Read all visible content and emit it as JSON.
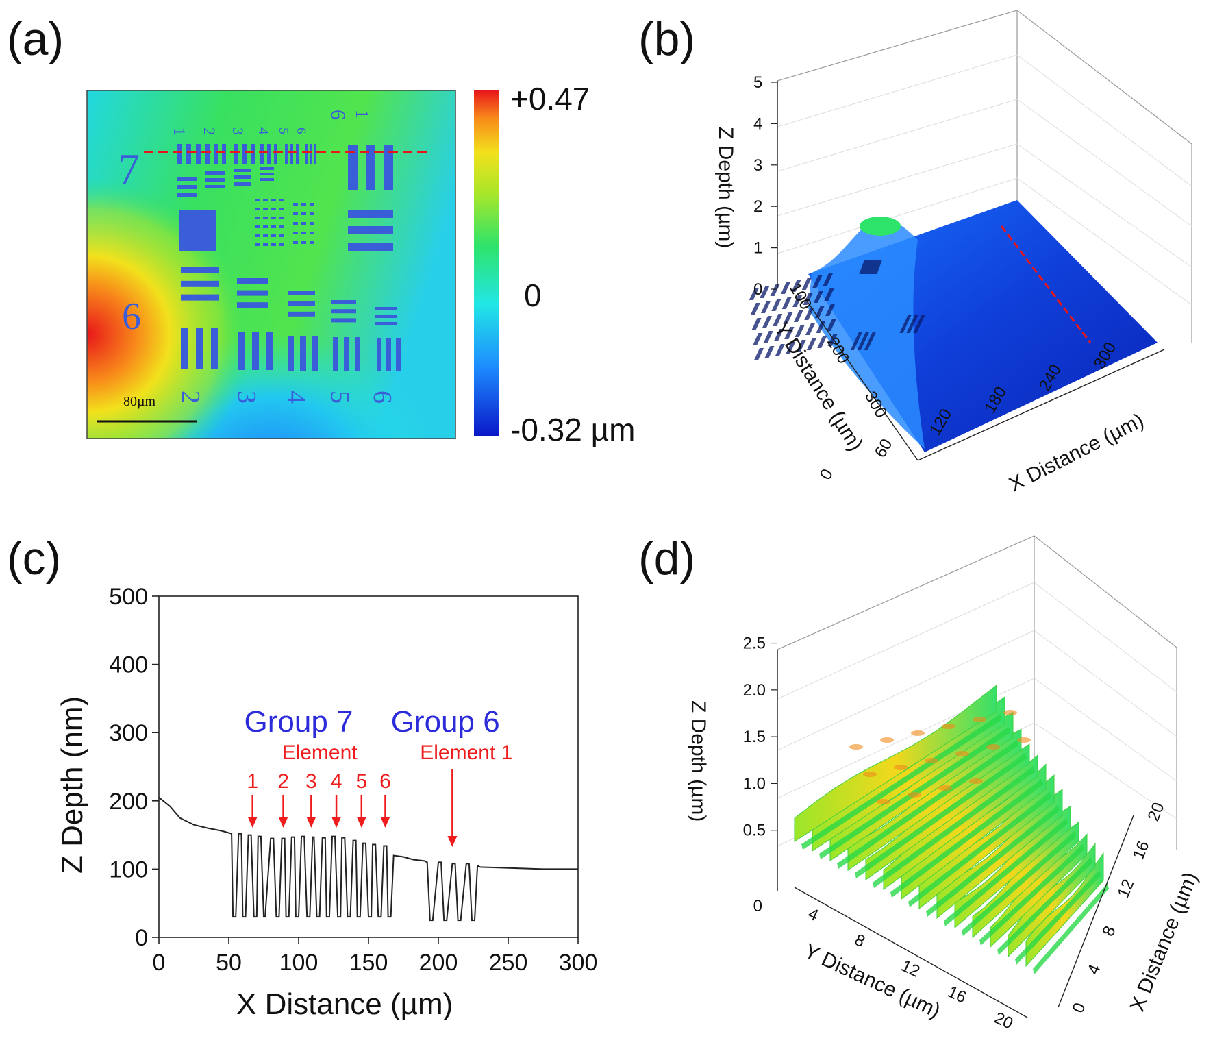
{
  "panel_labels": [
    "(a)",
    "(b)",
    "(c)",
    "(d)"
  ],
  "chart_data": [
    {
      "panel": "(a)",
      "type": "heatmap",
      "colorbar": {
        "max_label": "+0.47",
        "mid_label": "0",
        "min_label": "-0.32 µm",
        "min": -0.32,
        "max": 0.47,
        "unit": "µm"
      },
      "scale_bar_label": "80µm",
      "target_group_labels": [
        "7",
        "6"
      ],
      "element_labels_top": [
        "1",
        "2",
        "3",
        "4",
        "5",
        "6"
      ],
      "element_labels_bottom": [
        "2",
        "3",
        "4",
        "5",
        "6"
      ],
      "group6_top_labels": [
        "6",
        "1"
      ],
      "profile_line": "red dashed line across Group 7 and Group 6 Element 1"
    },
    {
      "panel": "(b)",
      "type": "surface3d",
      "zlabel": "Z Depth (µm)",
      "ylabel": "Y Distance (µm)",
      "xlabel": "X Distance (µm)",
      "z_ticks": [
        "0",
        "1",
        "2",
        "3",
        "4",
        "5"
      ],
      "y_ticks": [
        "100",
        "200",
        "300"
      ],
      "x_ticks": [
        "0",
        "60",
        "120",
        "180",
        "240",
        "300"
      ],
      "z_range": [
        0,
        5
      ],
      "x_range": [
        0,
        300
      ],
      "y_range": [
        0,
        300
      ]
    },
    {
      "panel": "(c)",
      "type": "line",
      "xlabel": "X Distance (µm)",
      "ylabel": "Z Depth (nm)",
      "xlim": [
        0,
        300
      ],
      "ylim": [
        0,
        500
      ],
      "x_ticks": [
        "0",
        "50",
        "100",
        "150",
        "200",
        "250",
        "300"
      ],
      "y_ticks": [
        "0",
        "100",
        "200",
        "300",
        "400",
        "500"
      ],
      "annotations": {
        "group7_label": "Group 7",
        "group7_sublabel": "Element",
        "group7_elements": [
          {
            "label": "1",
            "x": 67
          },
          {
            "label": "2",
            "x": 89
          },
          {
            "label": "3",
            "x": 109
          },
          {
            "label": "4",
            "x": 127
          },
          {
            "label": "5",
            "x": 145
          },
          {
            "label": "6",
            "x": 162
          }
        ],
        "group6_label": "Group 6",
        "group6_sublabel": "Element 1",
        "group6_arrow_x": 210
      },
      "series": [
        {
          "name": "profile",
          "x": [
            0,
            8,
            15,
            25,
            35,
            45,
            52,
            53,
            55,
            57,
            59,
            60,
            62,
            64,
            66,
            68,
            70,
            71,
            73,
            75,
            76,
            80,
            82,
            84,
            86,
            88,
            90,
            91,
            93,
            95,
            97,
            98,
            100,
            102,
            104,
            106,
            108,
            110,
            111,
            113,
            115,
            117,
            119,
            120,
            122,
            124,
            126,
            128,
            130,
            131,
            133,
            135,
            137,
            139,
            141,
            142,
            144,
            146,
            148,
            150,
            152,
            153,
            155,
            157,
            159,
            161,
            163,
            164,
            166,
            168,
            175,
            182,
            190,
            192,
            194,
            196,
            200,
            202,
            204,
            206,
            210,
            212,
            214,
            216,
            220,
            222,
            224,
            226,
            228,
            230,
            245,
            260,
            275,
            290,
            300
          ],
          "y": [
            205,
            192,
            175,
            165,
            160,
            156,
            152,
            30,
            30,
            152,
            152,
            30,
            30,
            150,
            150,
            30,
            30,
            148,
            148,
            30,
            30,
            145,
            145,
            30,
            30,
            145,
            145,
            30,
            30,
            147,
            147,
            30,
            30,
            148,
            148,
            30,
            30,
            147,
            147,
            30,
            30,
            146,
            146,
            30,
            30,
            148,
            148,
            30,
            30,
            146,
            146,
            30,
            30,
            142,
            142,
            30,
            30,
            138,
            138,
            30,
            30,
            136,
            136,
            30,
            30,
            134,
            134,
            30,
            30,
            120,
            118,
            114,
            112,
            110,
            25,
            25,
            110,
            110,
            25,
            25,
            108,
            108,
            25,
            25,
            108,
            108,
            25,
            25,
            105,
            103,
            102,
            101,
            100,
            100,
            100
          ]
        }
      ]
    },
    {
      "panel": "(d)",
      "type": "surface3d",
      "zlabel": "Z Depth (µm)",
      "ylabel": "Y Distance (µm)",
      "xlabel": "X Distance (µm)",
      "z_ticks": [
        "0",
        "0.5",
        "1.0",
        "1.5",
        "2.0",
        "2.5"
      ],
      "y_ticks": [
        "4",
        "8",
        "12",
        "16",
        "20"
      ],
      "x_ticks": [
        "0",
        "4",
        "8",
        "12",
        "16",
        "20"
      ],
      "z_range": [
        0,
        2.5
      ],
      "x_range": [
        0,
        20
      ],
      "y_range": [
        0,
        20
      ]
    }
  ]
}
